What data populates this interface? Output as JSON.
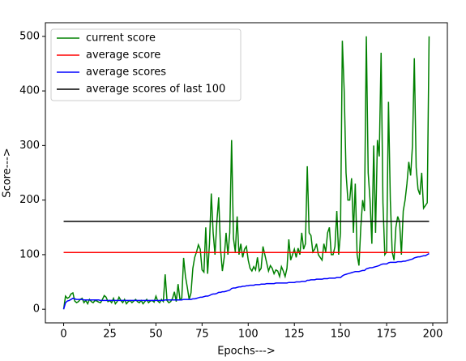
{
  "chart_data": {
    "type": "line",
    "xlabel": "Epochs--->",
    "ylabel": "Score--->",
    "x": [
      0,
      1,
      2,
      3,
      4,
      5,
      6,
      7,
      8,
      9,
      10,
      11,
      12,
      13,
      14,
      15,
      16,
      17,
      18,
      19,
      20,
      21,
      22,
      23,
      24,
      25,
      26,
      27,
      28,
      29,
      30,
      31,
      32,
      33,
      34,
      35,
      36,
      37,
      38,
      39,
      40,
      41,
      42,
      43,
      44,
      45,
      46,
      47,
      48,
      49,
      50,
      51,
      52,
      53,
      54,
      55,
      56,
      57,
      58,
      59,
      60,
      61,
      62,
      63,
      64,
      65,
      66,
      67,
      68,
      69,
      70,
      71,
      72,
      73,
      74,
      75,
      76,
      77,
      78,
      79,
      80,
      81,
      82,
      83,
      84,
      85,
      86,
      87,
      88,
      89,
      90,
      91,
      92,
      93,
      94,
      95,
      96,
      97,
      98,
      99,
      100,
      101,
      102,
      103,
      104,
      105,
      106,
      107,
      108,
      109,
      110,
      111,
      112,
      113,
      114,
      115,
      116,
      117,
      118,
      119,
      120,
      121,
      122,
      123,
      124,
      125,
      126,
      127,
      128,
      129,
      130,
      131,
      132,
      133,
      134,
      135,
      136,
      137,
      138,
      139,
      140,
      141,
      142,
      143,
      144,
      145,
      146,
      147,
      148,
      149,
      150,
      151,
      152,
      153,
      154,
      155,
      156,
      157,
      158,
      159,
      160,
      161,
      162,
      163,
      164,
      165,
      166,
      167,
      168,
      169,
      170,
      171,
      172,
      173,
      174,
      175,
      176,
      177,
      178,
      179,
      180,
      181,
      182,
      183,
      184,
      185,
      186,
      187,
      188,
      189,
      190,
      191,
      192,
      193,
      194,
      195,
      196,
      197,
      198
    ],
    "series": [
      {
        "name": "current score",
        "color": "#008000",
        "values": [
          0,
          24,
          20,
          22,
          28,
          30,
          15,
          12,
          14,
          18,
          20,
          12,
          16,
          10,
          18,
          14,
          12,
          16,
          15,
          13,
          12,
          18,
          25,
          22,
          14,
          16,
          12,
          20,
          10,
          14,
          22,
          16,
          12,
          18,
          10,
          14,
          16,
          12,
          15,
          18,
          14,
          12,
          16,
          10,
          14,
          18,
          12,
          15,
          16,
          13,
          24,
          15,
          12,
          18,
          14,
          64,
          16,
          12,
          14,
          20,
          32,
          14,
          46,
          18,
          20,
          94,
          60,
          40,
          18,
          30,
          75,
          95,
          105,
          118,
          110,
          72,
          68,
          150,
          65,
          120,
          212,
          140,
          100,
          160,
          205,
          110,
          70,
          95,
          140,
          100,
          140,
          310,
          130,
          105,
          170,
          100,
          120,
          95,
          110,
          115,
          90,
          75,
          70,
          78,
          72,
          95,
          70,
          75,
          115,
          100,
          85,
          70,
          80,
          75,
          65,
          72,
          70,
          60,
          78,
          70,
          60,
          75,
          128,
          90,
          100,
          110,
          95,
          112,
          100,
          140,
          110,
          120,
          262,
          140,
          135,
          105,
          110,
          120,
          100,
          95,
          90,
          120,
          105,
          140,
          150,
          100,
          100,
          115,
          180,
          100,
          140,
          492,
          400,
          250,
          200,
          200,
          240,
          140,
          230,
          100,
          80,
          150,
          200,
          180,
          500,
          250,
          200,
          120,
          300,
          140,
          310,
          280,
          470,
          195,
          100,
          105,
          380,
          200,
          105,
          90,
          150,
          170,
          160,
          100,
          180,
          200,
          230,
          270,
          245,
          300,
          460,
          260,
          220,
          210,
          250,
          185,
          190,
          195,
          500
        ]
      },
      {
        "name": "average score",
        "color": "#ff0000",
        "x": [
          0,
          198
        ],
        "values": [
          104,
          104
        ]
      },
      {
        "name": "average scores",
        "color": "#0000ff",
        "values": [
          0,
          12,
          15,
          16,
          18,
          20,
          19,
          18,
          18,
          18,
          18,
          17,
          17,
          17,
          17,
          17,
          17,
          17,
          17,
          17,
          16,
          16,
          16,
          16,
          16,
          16,
          16,
          16,
          16,
          16,
          16,
          16,
          16,
          16,
          16,
          16,
          16,
          16,
          16,
          16,
          16,
          16,
          16,
          16,
          16,
          16,
          16,
          16,
          16,
          16,
          16,
          16,
          16,
          16,
          16,
          17,
          17,
          17,
          17,
          17,
          17,
          17,
          17,
          17,
          17,
          18,
          18,
          18,
          18,
          18,
          19,
          19,
          20,
          21,
          22,
          22,
          23,
          24,
          24,
          25,
          27,
          28,
          28,
          29,
          31,
          31,
          32,
          32,
          33,
          34,
          35,
          38,
          39,
          39,
          40,
          41,
          41,
          42,
          42,
          43,
          43,
          44,
          44,
          44,
          45,
          45,
          45,
          46,
          46,
          46,
          47,
          47,
          47,
          47,
          47,
          48,
          48,
          48,
          48,
          48,
          48,
          48,
          49,
          49,
          49,
          49,
          50,
          50,
          50,
          51,
          51,
          51,
          53,
          53,
          54,
          54,
          54,
          55,
          55,
          55,
          55,
          56,
          56,
          56,
          57,
          57,
          57,
          57,
          58,
          58,
          58,
          61,
          63,
          64,
          65,
          66,
          67,
          68,
          69,
          69,
          69,
          70,
          71,
          71,
          74,
          75,
          76,
          76,
          77,
          78,
          79,
          80,
          82,
          83,
          83,
          83,
          85,
          86,
          86,
          86,
          86,
          87,
          87,
          87,
          88,
          88,
          89,
          90,
          91,
          92,
          94,
          95,
          96,
          96,
          97,
          98,
          98,
          100,
          102
        ]
      },
      {
        "name": "average scores of last 100",
        "color": "#000000",
        "x": [
          0,
          198
        ],
        "values": [
          161,
          161
        ]
      }
    ],
    "xlim": [
      -9.9,
      207.9
    ],
    "xticks": [
      0,
      25,
      50,
      75,
      100,
      125,
      150,
      175,
      200
    ],
    "ylim": [
      -25,
      525
    ],
    "yticks": [
      0,
      100,
      200,
      300,
      400,
      500
    ],
    "grid": false,
    "legend": "upper left"
  }
}
